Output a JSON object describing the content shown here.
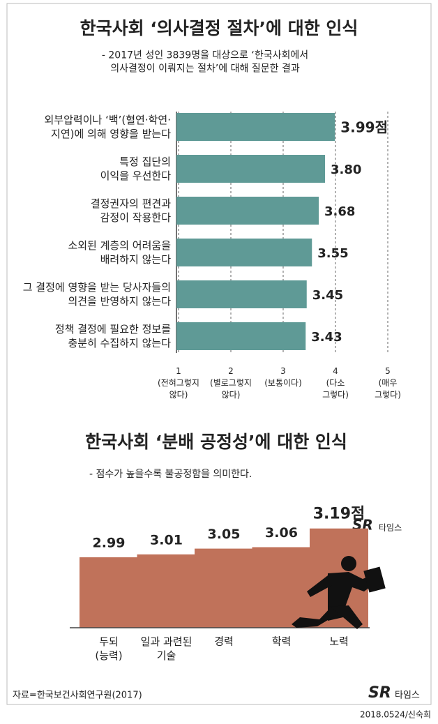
{
  "chart_data": [
    {
      "type": "hbar",
      "title": "한국사회  ‘의사결정 절차’에 대한 인식",
      "subtitle": "- 2017년 성인 3839명을 대상으로 ‘한국사회에서\n의사결정이 이뤄지는 절차’에 대해 질문한 결과",
      "categories": [
        "외부압력이나 ‘백’(혈연·학연·\n지연)에 의해 영향을 받는다",
        "특정 집단의\n이익을 우선한다",
        "결정권자의 편견과\n감정이 작용한다",
        "소외된 계층의 어려움을\n배려하지 않는다",
        "그 결정에 영향을 받는 당사자들의\n의견을 반영하지 않는다",
        "정책 결정에 필요한 정보를\n충분히 수집하지 않는다"
      ],
      "values": [
        3.99,
        3.8,
        3.68,
        3.55,
        3.45,
        3.43
      ],
      "value_labels": [
        "3.99점",
        "3.80",
        "3.68",
        "3.55",
        "3.45",
        "3.43"
      ],
      "color": "#5f9a96",
      "xlim": [
        1,
        5
      ],
      "xticks": [
        {
          "value": 1,
          "label": "1\n(전혀그렇지\n않다)"
        },
        {
          "value": 2,
          "label": "2\n(별로그렇지\n않다)"
        },
        {
          "value": 3,
          "label": "3\n(보통이다)"
        },
        {
          "value": 4,
          "label": "4\n(다소\n그렇다)"
        },
        {
          "value": 5,
          "label": "5\n(매우\n그렇다)"
        }
      ],
      "grid": true
    },
    {
      "type": "bar",
      "title": "한국사회  ‘분배 공정성’에 대한 인식",
      "subtitle": "- 점수가 높을수록 불공정함을 의미한다.",
      "categories": [
        "두되\n(능력)",
        "일과 과련된\n기술",
        "경력",
        "학력",
        "노력"
      ],
      "values": [
        2.99,
        3.01,
        3.05,
        3.06,
        3.19
      ],
      "value_labels": [
        "2.99",
        "3.01",
        "3.05",
        "3.06",
        "3.19점"
      ],
      "color": "#c0725a",
      "ylim": [
        2.5,
        3.3
      ]
    }
  ],
  "source": "자료=한국보건사회연구원(2017)",
  "credit": "2018.0524/신숙희",
  "logo": {
    "mark": "SR",
    "text": "타임스"
  }
}
